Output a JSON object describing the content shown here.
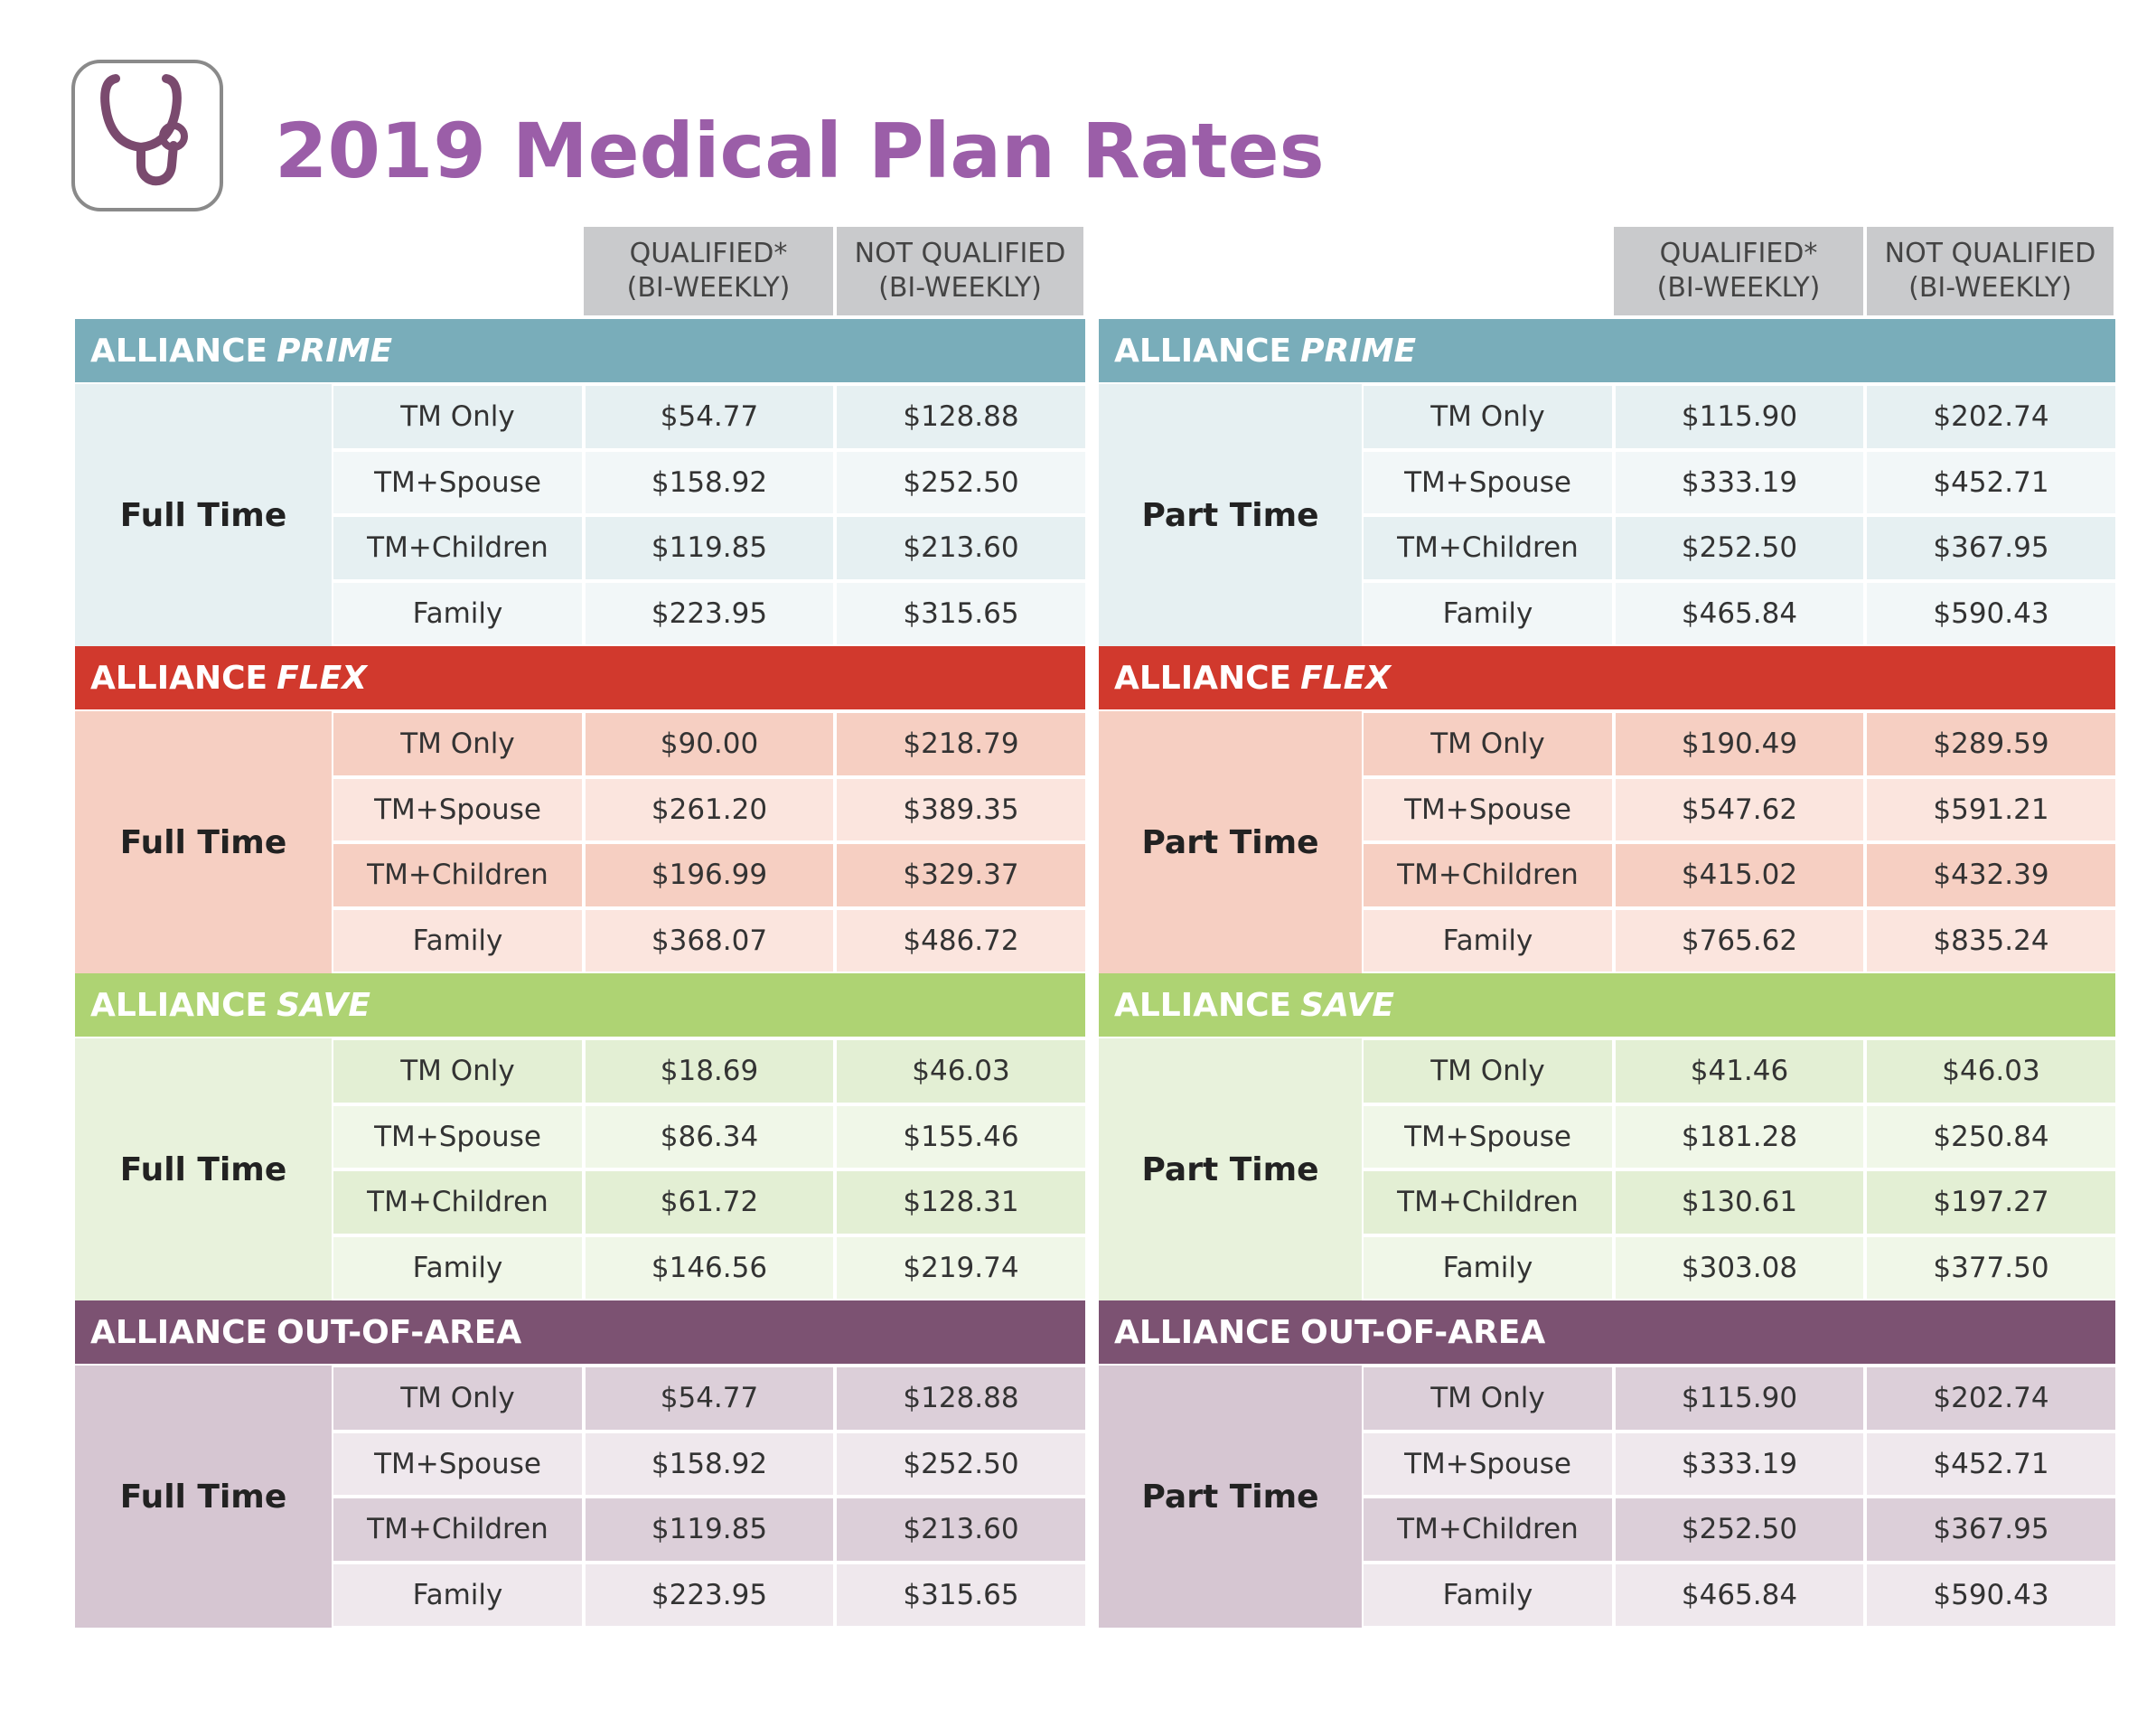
{
  "header": {
    "title": "2019 Medical Plan Rates",
    "title_color": "#9b5ea8"
  },
  "tables": [
    {
      "columns": [
        [
          "QUALIFIED*",
          "(BI-WEEKLY)"
        ],
        [
          "NOT QUALIFIED",
          "(BI-WEEKLY)"
        ]
      ],
      "plans": [
        {
          "name": "ALLIANCE",
          "variant": "PRIME",
          "italic": true,
          "band_color": "#79adba",
          "group_color": "#e6f0f2",
          "row_colors": [
            "#e6f0f2",
            "#f2f7f8"
          ],
          "group": "Full Time",
          "rows": [
            [
              "TM Only",
              "$54.77",
              "$128.88"
            ],
            [
              "TM+Spouse",
              "$158.92",
              "$252.50"
            ],
            [
              "TM+Children",
              "$119.85",
              "$213.60"
            ],
            [
              "Family",
              "$223.95",
              "$315.65"
            ]
          ]
        },
        {
          "name": "ALLIANCE",
          "variant": "FLEX",
          "italic": true,
          "band_color": "#d1392d",
          "group_color": "#f6cfc2",
          "row_colors": [
            "#f6cfc2",
            "#fbe5de"
          ],
          "group": "Full Time",
          "rows": [
            [
              "TM Only",
              "$90.00",
              "$218.79"
            ],
            [
              "TM+Spouse",
              "$261.20",
              "$389.35"
            ],
            [
              "TM+Children",
              "$196.99",
              "$329.37"
            ],
            [
              "Family",
              "$368.07",
              "$486.72"
            ]
          ]
        },
        {
          "name": "ALLIANCE",
          "variant": "SAVE",
          "italic": true,
          "band_color": "#aed373",
          "group_color": "#e8f2dc",
          "row_colors": [
            "#e3efd4",
            "#f0f7e8"
          ],
          "group": "Full Time",
          "rows": [
            [
              "TM Only",
              "$18.69",
              "$46.03"
            ],
            [
              "TM+Spouse",
              "$86.34",
              "$155.46"
            ],
            [
              "TM+Children",
              "$61.72",
              "$128.31"
            ],
            [
              "Family",
              "$146.56",
              "$219.74"
            ]
          ]
        },
        {
          "name": "ALLIANCE",
          "variant": "OUT-OF-AREA",
          "italic": false,
          "band_color": "#7c5272",
          "group_color": "#d6c6d2",
          "row_colors": [
            "#dccfd9",
            "#efe8ed"
          ],
          "group": "Full Time",
          "rows": [
            [
              "TM Only",
              "$54.77",
              "$128.88"
            ],
            [
              "TM+Spouse",
              "$158.92",
              "$252.50"
            ],
            [
              "TM+Children",
              "$119.85",
              "$213.60"
            ],
            [
              "Family",
              "$223.95",
              "$315.65"
            ]
          ]
        }
      ]
    },
    {
      "columns": [
        [
          "QUALIFIED*",
          "(BI-WEEKLY)"
        ],
        [
          "NOT QUALIFIED",
          "(BI-WEEKLY)"
        ]
      ],
      "plans": [
        {
          "name": "ALLIANCE",
          "variant": "PRIME",
          "italic": true,
          "band_color": "#79adba",
          "group_color": "#e6f0f2",
          "row_colors": [
            "#e6f0f2",
            "#f2f7f8"
          ],
          "group": "Part Time",
          "rows": [
            [
              "TM Only",
              "$115.90",
              "$202.74"
            ],
            [
              "TM+Spouse",
              "$333.19",
              "$452.71"
            ],
            [
              "TM+Children",
              "$252.50",
              "$367.95"
            ],
            [
              "Family",
              "$465.84",
              "$590.43"
            ]
          ]
        },
        {
          "name": "ALLIANCE",
          "variant": "FLEX",
          "italic": true,
          "band_color": "#d1392d",
          "group_color": "#f6cfc2",
          "row_colors": [
            "#f6cfc2",
            "#fbe5de"
          ],
          "group": "Part Time",
          "rows": [
            [
              "TM Only",
              "$190.49",
              "$289.59"
            ],
            [
              "TM+Spouse",
              "$547.62",
              "$591.21"
            ],
            [
              "TM+Children",
              "$415.02",
              "$432.39"
            ],
            [
              "Family",
              "$765.62",
              "$835.24"
            ]
          ]
        },
        {
          "name": "ALLIANCE",
          "variant": "SAVE",
          "italic": true,
          "band_color": "#aed373",
          "group_color": "#e8f2dc",
          "row_colors": [
            "#e3efd4",
            "#f0f7e8"
          ],
          "group": "Part Time",
          "rows": [
            [
              "TM Only",
              "$41.46",
              "$46.03"
            ],
            [
              "TM+Spouse",
              "$181.28",
              "$250.84"
            ],
            [
              "TM+Children",
              "$130.61",
              "$197.27"
            ],
            [
              "Family",
              "$303.08",
              "$377.50"
            ]
          ]
        },
        {
          "name": "ALLIANCE",
          "variant": "OUT-OF-AREA",
          "italic": false,
          "band_color": "#7c5272",
          "group_color": "#d6c6d2",
          "row_colors": [
            "#dccfd9",
            "#efe8ed"
          ],
          "group": "Part Time",
          "rows": [
            [
              "TM Only",
              "$115.90",
              "$202.74"
            ],
            [
              "TM+Spouse",
              "$333.19",
              "$452.71"
            ],
            [
              "TM+Children",
              "$252.50",
              "$367.95"
            ],
            [
              "Family",
              "$465.84",
              "$590.43"
            ]
          ]
        }
      ]
    }
  ]
}
